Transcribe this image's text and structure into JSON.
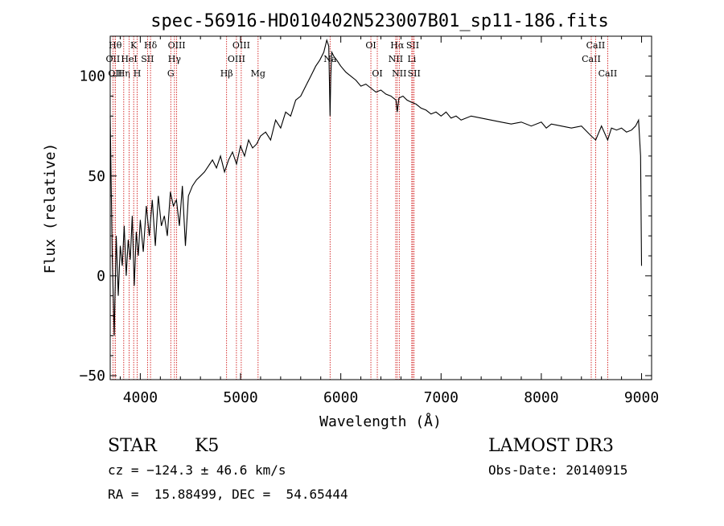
{
  "chart_data": {
    "type": "line",
    "title": "spec-56916-HD010402N523007B01_sp11-186.fits",
    "xlabel": "Wavelength (Å)",
    "ylabel": "Flux (relative)",
    "xlim": [
      3700,
      9100
    ],
    "ylim": [
      -52,
      120
    ],
    "xticks": [
      4000,
      5000,
      6000,
      7000,
      8000,
      9000
    ],
    "yticks": [
      -50,
      0,
      50,
      100
    ],
    "grid": false,
    "line_color": "#000000",
    "marker_color": "#cc0000",
    "series": [
      {
        "x": [
          3700,
          3720,
          3740,
          3760,
          3780,
          3800,
          3820,
          3840,
          3860,
          3880,
          3900,
          3920,
          3940,
          3960,
          3980,
          4000,
          4030,
          4060,
          4090,
          4120,
          4150,
          4180,
          4210,
          4240,
          4270,
          4300,
          4330,
          4360,
          4390,
          4420,
          4450,
          4480,
          4520,
          4560,
          4600,
          4640,
          4680,
          4720,
          4760,
          4800,
          4840,
          4880,
          4920,
          4960,
          5000,
          5040,
          5080,
          5120,
          5160,
          5200,
          5250,
          5300,
          5350,
          5400,
          5450,
          5500,
          5550,
          5600,
          5650,
          5700,
          5750,
          5790,
          5830,
          5860,
          5880,
          5893,
          5900,
          5910,
          5930,
          5960,
          6000,
          6050,
          6100,
          6150,
          6200,
          6250,
          6300,
          6350,
          6400,
          6450,
          6500,
          6550,
          6563,
          6580,
          6620,
          6660,
          6700,
          6750,
          6800,
          6850,
          6900,
          6950,
          7000,
          7050,
          7100,
          7150,
          7200,
          7300,
          7400,
          7500,
          7600,
          7700,
          7800,
          7900,
          8000,
          8050,
          8100,
          8200,
          8300,
          8400,
          8498,
          8542,
          8600,
          8662,
          8700,
          8750,
          8800,
          8850,
          8900,
          8940,
          8970,
          8990,
          9000
        ],
        "y": [
          80,
          10,
          -30,
          20,
          -10,
          15,
          5,
          25,
          0,
          18,
          8,
          30,
          -5,
          22,
          10,
          28,
          12,
          35,
          20,
          38,
          15,
          40,
          25,
          30,
          20,
          42,
          35,
          38,
          25,
          45,
          15,
          40,
          45,
          48,
          50,
          52,
          55,
          58,
          54,
          60,
          52,
          58,
          62,
          56,
          65,
          60,
          68,
          64,
          66,
          70,
          72,
          68,
          78,
          74,
          82,
          80,
          88,
          90,
          95,
          100,
          105,
          108,
          112,
          118,
          115,
          80,
          100,
          112,
          110,
          108,
          105,
          102,
          100,
          98,
          95,
          96,
          94,
          92,
          93,
          91,
          90,
          88,
          82,
          89,
          90,
          88,
          87,
          86,
          84,
          83,
          81,
          82,
          80,
          82,
          79,
          80,
          78,
          80,
          79,
          78,
          77,
          76,
          77,
          75,
          77,
          74,
          76,
          75,
          74,
          75,
          70,
          68,
          75,
          68,
          74,
          73,
          74,
          72,
          73,
          75,
          78,
          60,
          5
        ]
      }
    ],
    "line_markers": [
      {
        "label": "OII",
        "x": 3727,
        "row": 2
      },
      {
        "label": "Hθ",
        "x": 3750,
        "row": 1
      },
      {
        "label": "OII",
        "x": 3750,
        "row": 3
      },
      {
        "label": "Hη",
        "x": 3835,
        "row": 3
      },
      {
        "label": "K",
        "x": 3934,
        "row": 1
      },
      {
        "label": "H",
        "x": 3969,
        "row": 3
      },
      {
        "label": "HeI",
        "x": 3889,
        "row": 2
      },
      {
        "label": "SII",
        "x": 4072,
        "row": 2
      },
      {
        "label": "Hδ",
        "x": 4102,
        "row": 1
      },
      {
        "label": "G",
        "x": 4304,
        "row": 3
      },
      {
        "label": "Hγ",
        "x": 4341,
        "row": 2
      },
      {
        "label": "OIII",
        "x": 4363,
        "row": 1
      },
      {
        "label": "Hβ",
        "x": 4861,
        "row": 3
      },
      {
        "label": "OIII",
        "x": 4959,
        "row": 2
      },
      {
        "label": "OIII",
        "x": 5007,
        "row": 1
      },
      {
        "label": "Mg",
        "x": 5175,
        "row": 3
      },
      {
        "label": "Na",
        "x": 5893,
        "row": 2
      },
      {
        "label": "OI",
        "x": 6300,
        "row": 1
      },
      {
        "label": "OI",
        "x": 6364,
        "row": 3
      },
      {
        "label": "NII",
        "x": 6548,
        "row": 2
      },
      {
        "label": "Hα",
        "x": 6563,
        "row": 1
      },
      {
        "label": "NII",
        "x": 6583,
        "row": 3
      },
      {
        "label": "Li",
        "x": 6708,
        "row": 2
      },
      {
        "label": "SII",
        "x": 6717,
        "row": 1
      },
      {
        "label": "SII",
        "x": 6731,
        "row": 3
      },
      {
        "label": "CaII",
        "x": 8498,
        "row": 2
      },
      {
        "label": "CaII",
        "x": 8542,
        "row": 1
      },
      {
        "label": "CaII",
        "x": 8662,
        "row": 3
      }
    ]
  },
  "info": {
    "object_class": "STAR",
    "subclass": "K5",
    "survey": "LAMOST DR3",
    "cz": "cz = −124.3 ± 46.6 km/s",
    "obs_date": "Obs-Date: 20140915",
    "coords": "RA =  15.88499, DEC =  54.65444"
  }
}
